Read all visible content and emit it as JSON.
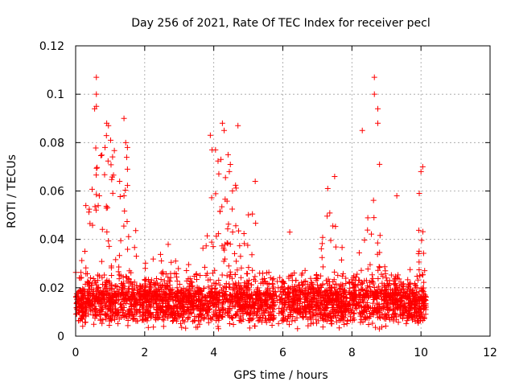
{
  "chart_data": {
    "type": "scatter",
    "title": "Day 256 of 2021, Rate Of TEC Index for receiver pecl",
    "xlabel": "GPS time / hours",
    "ylabel": "ROTI / TECUs",
    "xlim": [
      0,
      12
    ],
    "ylim": [
      0,
      0.12
    ],
    "xticks": [
      0,
      2,
      4,
      6,
      8,
      10,
      12
    ],
    "xtick_labels": [
      "0",
      "2",
      "4",
      "6",
      "8",
      "10",
      "12"
    ],
    "yticks": [
      0,
      0.02,
      0.04,
      0.06,
      0.08,
      0.1,
      0.12
    ],
    "ytick_labels": [
      "0",
      "0.02",
      "0.04",
      "0.06",
      "0.08",
      "0.1",
      "0.12"
    ],
    "grid": true,
    "marker": "plus",
    "color": "#ff0000",
    "series": [
      {
        "name": "ROTI",
        "data_range_hours": [
          0.0,
          10.15
        ],
        "notable_points": [
          {
            "x": 0.6,
            "y": 0.107
          },
          {
            "x": 0.6,
            "y": 0.1
          },
          {
            "x": 0.6,
            "y": 0.095
          },
          {
            "x": 0.55,
            "y": 0.094
          },
          {
            "x": 0.9,
            "y": 0.088
          },
          {
            "x": 0.95,
            "y": 0.087
          },
          {
            "x": 0.85,
            "y": 0.078
          },
          {
            "x": 1.4,
            "y": 0.09
          },
          {
            "x": 1.45,
            "y": 0.08
          },
          {
            "x": 1.5,
            "y": 0.078
          },
          {
            "x": 1.5,
            "y": 0.069
          },
          {
            "x": 1.4,
            "y": 0.058
          },
          {
            "x": 3.9,
            "y": 0.083
          },
          {
            "x": 3.95,
            "y": 0.077
          },
          {
            "x": 4.05,
            "y": 0.077
          },
          {
            "x": 4.25,
            "y": 0.088
          },
          {
            "x": 4.3,
            "y": 0.085
          },
          {
            "x": 4.7,
            "y": 0.087
          },
          {
            "x": 4.45,
            "y": 0.068
          },
          {
            "x": 5.2,
            "y": 0.064
          },
          {
            "x": 6.2,
            "y": 0.043
          },
          {
            "x": 7.5,
            "y": 0.066
          },
          {
            "x": 7.3,
            "y": 0.061
          },
          {
            "x": 8.3,
            "y": 0.085
          },
          {
            "x": 8.65,
            "y": 0.107
          },
          {
            "x": 8.65,
            "y": 0.1
          },
          {
            "x": 8.75,
            "y": 0.094
          },
          {
            "x": 8.75,
            "y": 0.088
          },
          {
            "x": 8.8,
            "y": 0.071
          },
          {
            "x": 9.3,
            "y": 0.058
          },
          {
            "x": 10.05,
            "y": 0.07
          },
          {
            "x": 10.0,
            "y": 0.068
          },
          {
            "x": 9.95,
            "y": 0.059
          }
        ]
      }
    ]
  }
}
